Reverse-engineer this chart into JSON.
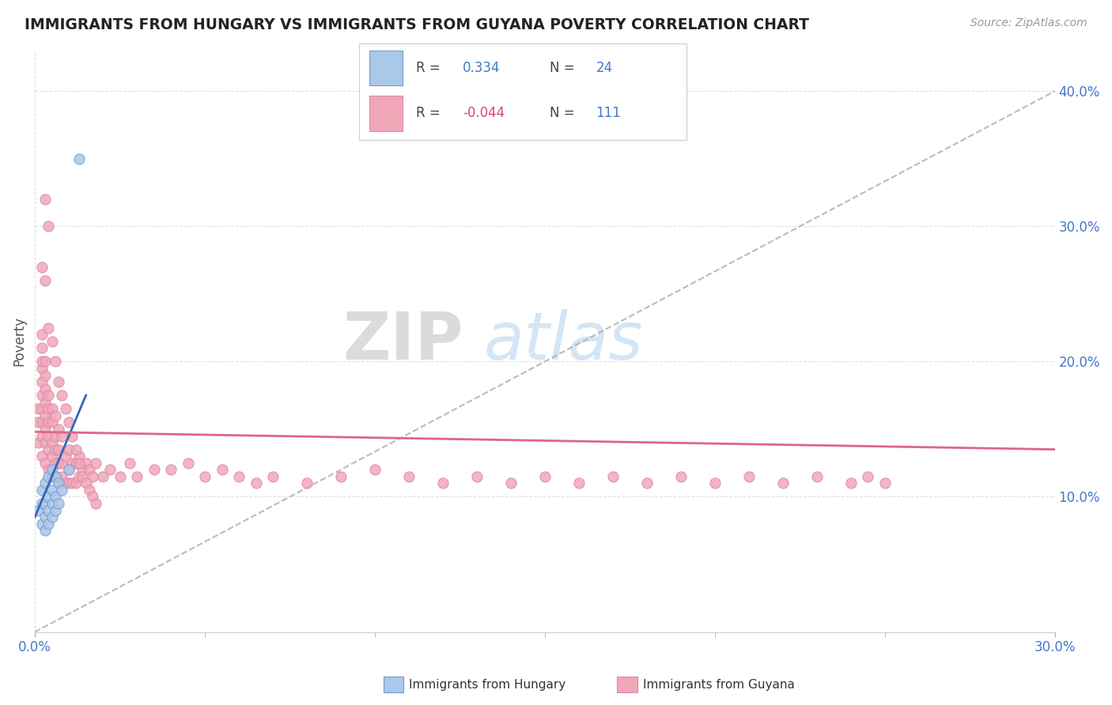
{
  "title": "IMMIGRANTS FROM HUNGARY VS IMMIGRANTS FROM GUYANA POVERTY CORRELATION CHART",
  "source": "Source: ZipAtlas.com",
  "ylabel": "Poverty",
  "xlim": [
    0,
    0.3
  ],
  "ylim": [
    0,
    0.43
  ],
  "yticks": [
    0.1,
    0.2,
    0.3,
    0.4
  ],
  "ytick_labels": [
    "10.0%",
    "20.0%",
    "30.0%",
    "40.0%"
  ],
  "hungary_color": "#aac8e8",
  "guyana_color": "#f0a8b8",
  "hungary_line_color": "#3366bb",
  "guyana_line_color": "#dd6688",
  "ref_line_color": "#aaaaaa",
  "watermark_zip": "ZIP",
  "watermark_atlas": "atlas",
  "hungary_x": [
    0.001,
    0.002,
    0.002,
    0.002,
    0.003,
    0.003,
    0.003,
    0.003,
    0.004,
    0.004,
    0.004,
    0.004,
    0.005,
    0.005,
    0.005,
    0.005,
    0.006,
    0.006,
    0.006,
    0.007,
    0.007,
    0.008,
    0.01,
    0.013
  ],
  "hungary_y": [
    0.09,
    0.08,
    0.095,
    0.105,
    0.075,
    0.085,
    0.095,
    0.11,
    0.08,
    0.09,
    0.1,
    0.115,
    0.085,
    0.095,
    0.105,
    0.12,
    0.09,
    0.1,
    0.115,
    0.095,
    0.11,
    0.105,
    0.12,
    0.35
  ],
  "guyana_x": [
    0.001,
    0.001,
    0.001,
    0.002,
    0.002,
    0.002,
    0.002,
    0.002,
    0.002,
    0.002,
    0.002,
    0.002,
    0.002,
    0.003,
    0.003,
    0.003,
    0.003,
    0.003,
    0.003,
    0.003,
    0.003,
    0.004,
    0.004,
    0.004,
    0.004,
    0.004,
    0.004,
    0.005,
    0.005,
    0.005,
    0.005,
    0.005,
    0.006,
    0.006,
    0.006,
    0.006,
    0.006,
    0.007,
    0.007,
    0.007,
    0.007,
    0.008,
    0.008,
    0.008,
    0.009,
    0.009,
    0.01,
    0.01,
    0.01,
    0.011,
    0.011,
    0.012,
    0.012,
    0.013,
    0.013,
    0.014,
    0.015,
    0.016,
    0.017,
    0.018,
    0.02,
    0.022,
    0.025,
    0.028,
    0.03,
    0.035,
    0.04,
    0.045,
    0.05,
    0.055,
    0.06,
    0.065,
    0.07,
    0.08,
    0.09,
    0.1,
    0.11,
    0.12,
    0.13,
    0.14,
    0.15,
    0.16,
    0.17,
    0.18,
    0.19,
    0.2,
    0.21,
    0.22,
    0.23,
    0.24,
    0.245,
    0.25,
    0.002,
    0.003,
    0.004,
    0.005,
    0.006,
    0.007,
    0.008,
    0.009,
    0.01,
    0.011,
    0.012,
    0.013,
    0.014,
    0.015,
    0.016,
    0.017,
    0.018,
    0.003,
    0.004
  ],
  "guyana_y": [
    0.14,
    0.155,
    0.165,
    0.13,
    0.145,
    0.155,
    0.165,
    0.175,
    0.185,
    0.195,
    0.2,
    0.21,
    0.22,
    0.125,
    0.14,
    0.15,
    0.16,
    0.17,
    0.18,
    0.19,
    0.2,
    0.12,
    0.135,
    0.145,
    0.155,
    0.165,
    0.175,
    0.115,
    0.13,
    0.14,
    0.155,
    0.165,
    0.115,
    0.125,
    0.135,
    0.145,
    0.16,
    0.11,
    0.125,
    0.135,
    0.15,
    0.115,
    0.125,
    0.145,
    0.11,
    0.13,
    0.11,
    0.12,
    0.135,
    0.11,
    0.125,
    0.11,
    0.125,
    0.115,
    0.13,
    0.12,
    0.125,
    0.12,
    0.115,
    0.125,
    0.115,
    0.12,
    0.115,
    0.125,
    0.115,
    0.12,
    0.12,
    0.125,
    0.115,
    0.12,
    0.115,
    0.11,
    0.115,
    0.11,
    0.115,
    0.12,
    0.115,
    0.11,
    0.115,
    0.11,
    0.115,
    0.11,
    0.115,
    0.11,
    0.115,
    0.11,
    0.115,
    0.11,
    0.115,
    0.11,
    0.115,
    0.11,
    0.27,
    0.26,
    0.225,
    0.215,
    0.2,
    0.185,
    0.175,
    0.165,
    0.155,
    0.145,
    0.135,
    0.125,
    0.115,
    0.11,
    0.105,
    0.1,
    0.095,
    0.32,
    0.3
  ],
  "hungary_trend_x": [
    0.0,
    0.015
  ],
  "hungary_trend_y": [
    0.085,
    0.175
  ],
  "guyana_trend_x": [
    0.0,
    0.3
  ],
  "guyana_trend_y": [
    0.148,
    0.135
  ],
  "ref_line_x": [
    0.0,
    0.3
  ],
  "ref_line_y": [
    0.0,
    0.4
  ]
}
